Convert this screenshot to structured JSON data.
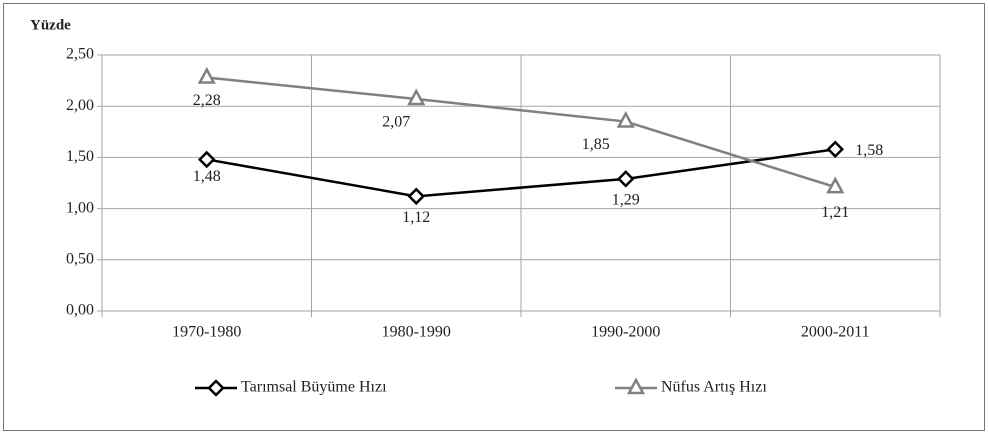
{
  "chart_data": {
    "type": "line",
    "y_label": "Yüzde",
    "categories": [
      "1970-1980",
      "1980-1990",
      "1990-2000",
      "2000-2011"
    ],
    "series": [
      {
        "name": "Tarımsal Büyüme Hızı",
        "color": "#000000",
        "marker": "diamond",
        "values": [
          1.48,
          1.12,
          1.29,
          1.58
        ],
        "value_labels": [
          "1,48",
          "1,12",
          "1,29",
          "1,58"
        ]
      },
      {
        "name": "Nüfus Artış Hızı",
        "color": "#808080",
        "marker": "triangle",
        "values": [
          2.28,
          2.07,
          1.85,
          1.21
        ],
        "value_labels": [
          "2,28",
          "2,07",
          "1,85",
          "1,21"
        ]
      }
    ],
    "ylim": [
      0,
      2.5
    ],
    "yticks": [
      {
        "value": 0,
        "label": "0,00"
      },
      {
        "value": 0.5,
        "label": "0,50"
      },
      {
        "value": 1,
        "label": "1,00"
      },
      {
        "value": 1.5,
        "label": "1,50"
      },
      {
        "value": 2,
        "label": "2,00"
      },
      {
        "value": 2.5,
        "label": "2,50"
      }
    ],
    "grid": true,
    "legend": "bottom"
  }
}
